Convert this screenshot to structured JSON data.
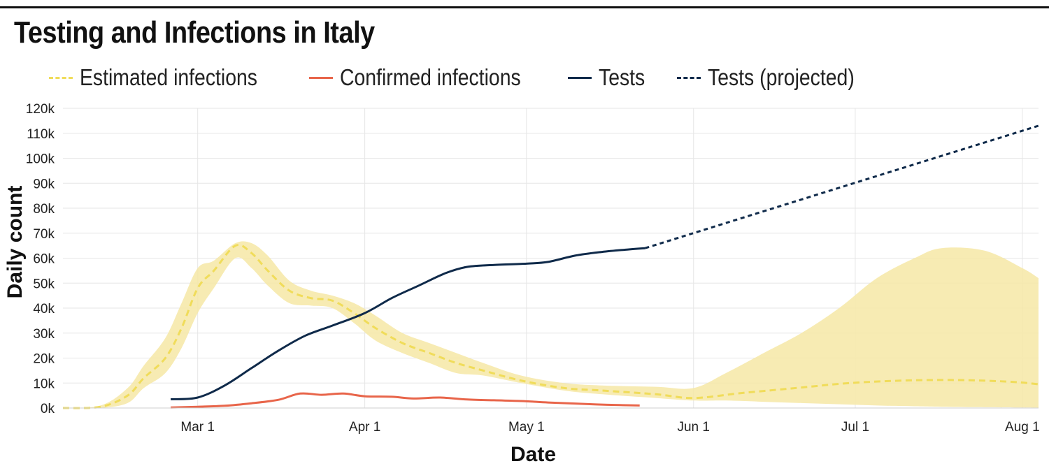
{
  "title": "Testing and Infections in Italy",
  "legend": [
    {
      "label": "Estimated infections",
      "color": "#f0dc5a",
      "style": "dashed"
    },
    {
      "label": "Confirmed infections",
      "color": "#e8654a",
      "style": "solid"
    },
    {
      "label": "Tests",
      "color": "#0f2a4a",
      "style": "solid"
    },
    {
      "label": "Tests (projected)",
      "color": "#0f2a4a",
      "style": "dotted"
    }
  ],
  "chart_data": {
    "type": "line",
    "title": "Testing and Infections in Italy",
    "xlabel": "Date",
    "ylabel": "Daily count",
    "x_ticks": [
      "Mar 1",
      "Apr 1",
      "May 1",
      "Jun 1",
      "Jul 1",
      "Aug 1"
    ],
    "x_range": [
      "2020-02-05",
      "2020-08-04"
    ],
    "y_ticks": [
      "0k",
      "10k",
      "20k",
      "30k",
      "40k",
      "50k",
      "60k",
      "70k",
      "80k",
      "90k",
      "100k",
      "110k",
      "120k"
    ],
    "ylim": [
      0,
      120000
    ],
    "grid": true,
    "legend_position": "top",
    "band_color": "#f6e7a6",
    "series": [
      {
        "name": "Estimated infections",
        "color": "#f0dc5a",
        "style": "dashed",
        "x": [
          "2020-02-05",
          "2020-02-12",
          "2020-02-17",
          "2020-02-20",
          "2020-02-24",
          "2020-02-27",
          "2020-03-01",
          "2020-03-04",
          "2020-03-08",
          "2020-03-11",
          "2020-03-14",
          "2020-03-18",
          "2020-03-22",
          "2020-03-26",
          "2020-03-30",
          "2020-04-03",
          "2020-04-08",
          "2020-04-13",
          "2020-04-18",
          "2020-04-23",
          "2020-04-30",
          "2020-05-08",
          "2020-05-15",
          "2020-05-25",
          "2020-06-01",
          "2020-06-10",
          "2020-06-20",
          "2020-06-30",
          "2020-07-10",
          "2020-07-20",
          "2020-07-30",
          "2020-08-04"
        ],
        "y": [
          0,
          500,
          5000,
          12000,
          20000,
          32000,
          48000,
          55000,
          65000,
          62000,
          55000,
          47000,
          44000,
          43000,
          38000,
          32000,
          26000,
          22000,
          18000,
          15000,
          11000,
          8000,
          7000,
          5500,
          4000,
          6000,
          8000,
          10000,
          11000,
          11200,
          10500,
          9500
        ]
      },
      {
        "name": "Confirmed infections",
        "color": "#e8654a",
        "style": "solid",
        "x": [
          "2020-02-25",
          "2020-03-01",
          "2020-03-06",
          "2020-03-11",
          "2020-03-16",
          "2020-03-20",
          "2020-03-24",
          "2020-03-28",
          "2020-04-01",
          "2020-04-06",
          "2020-04-10",
          "2020-04-15",
          "2020-04-20",
          "2020-04-25",
          "2020-04-30",
          "2020-05-05",
          "2020-05-10",
          "2020-05-16",
          "2020-05-22"
        ],
        "y": [
          200,
          500,
          900,
          1900,
          3300,
          5800,
          5300,
          5800,
          4700,
          4500,
          3800,
          4200,
          3400,
          3100,
          2800,
          2200,
          1800,
          1300,
          1000
        ]
      },
      {
        "name": "Tests",
        "color": "#0f2a4a",
        "style": "solid",
        "x": [
          "2020-02-25",
          "2020-03-01",
          "2020-03-06",
          "2020-03-11",
          "2020-03-16",
          "2020-03-21",
          "2020-03-26",
          "2020-04-01",
          "2020-04-06",
          "2020-04-11",
          "2020-04-16",
          "2020-04-20",
          "2020-04-25",
          "2020-05-01",
          "2020-05-05",
          "2020-05-10",
          "2020-05-15",
          "2020-05-20",
          "2020-05-23"
        ],
        "y": [
          3500,
          4200,
          9000,
          16000,
          23000,
          29000,
          33000,
          38000,
          44000,
          49000,
          54000,
          56500,
          57300,
          57800,
          58500,
          61000,
          62500,
          63500,
          64000
        ]
      },
      {
        "name": "Tests (projected)",
        "color": "#0f2a4a",
        "style": "dotted",
        "x": [
          "2020-05-23",
          "2020-08-04"
        ],
        "y": [
          64000,
          113000
        ]
      }
    ],
    "uncertainty_band": {
      "series": "Estimated infections",
      "x": [
        "2020-02-05",
        "2020-02-12",
        "2020-02-17",
        "2020-02-20",
        "2020-02-24",
        "2020-02-27",
        "2020-03-01",
        "2020-03-04",
        "2020-03-08",
        "2020-03-11",
        "2020-03-14",
        "2020-03-18",
        "2020-03-22",
        "2020-03-26",
        "2020-03-30",
        "2020-04-03",
        "2020-04-08",
        "2020-04-13",
        "2020-04-18",
        "2020-04-23",
        "2020-04-30",
        "2020-05-08",
        "2020-05-15",
        "2020-05-25",
        "2020-06-01",
        "2020-06-07",
        "2020-06-14",
        "2020-06-21",
        "2020-06-28",
        "2020-07-05",
        "2020-07-12",
        "2020-07-17",
        "2020-07-25",
        "2020-08-01",
        "2020-08-04"
      ],
      "lower": [
        0,
        0,
        2000,
        8000,
        14000,
        24000,
        38000,
        48000,
        60000,
        56000,
        49000,
        42000,
        41000,
        40000,
        34000,
        27000,
        22000,
        18000,
        14000,
        13000,
        10000,
        7000,
        5500,
        4000,
        3000,
        3000,
        2500,
        2000,
        1500,
        1000,
        700,
        500,
        300,
        200,
        100
      ],
      "upper": [
        0,
        1000,
        8000,
        17000,
        28000,
        42000,
        56000,
        59000,
        66000,
        66000,
        61000,
        51000,
        47000,
        45000,
        42000,
        37000,
        30000,
        26000,
        22000,
        18000,
        13000,
        10000,
        9000,
        8500,
        8000,
        14000,
        22000,
        30000,
        40000,
        52000,
        60000,
        64000,
        63000,
        56000,
        52000
      ]
    }
  }
}
